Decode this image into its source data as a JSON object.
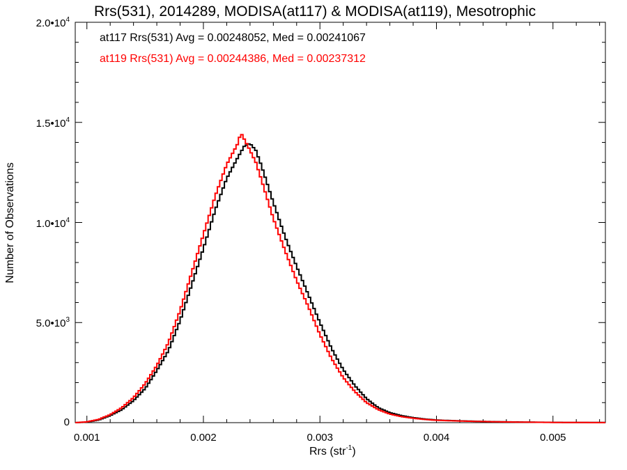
{
  "chart_data": {
    "type": "line",
    "title": "Rrs(531), 2014289, MODISA(at117) & MODISA(at119), Mesotrophic",
    "xlabel_main": "Rrs (str",
    "xlabel_sup": "-1",
    "xlabel_end": ")",
    "ylabel": "Number of Observations",
    "xlim": [
      0.0009,
      0.00545
    ],
    "ylim": [
      0,
      20000
    ],
    "x_ticks": [
      {
        "value": 0.001,
        "label": "0.001"
      },
      {
        "value": 0.002,
        "label": "0.002"
      },
      {
        "value": 0.003,
        "label": "0.003"
      },
      {
        "value": 0.004,
        "label": "0.004"
      },
      {
        "value": 0.005,
        "label": "0.005"
      }
    ],
    "y_ticks": [
      {
        "value": 0,
        "base": "0",
        "exp": ""
      },
      {
        "value": 5000,
        "base": "5.0•10",
        "exp": "3"
      },
      {
        "value": 10000,
        "base": "1.0•10",
        "exp": "4"
      },
      {
        "value": 15000,
        "base": "1.5•10",
        "exp": "4"
      },
      {
        "value": 20000,
        "base": "2.0•10",
        "exp": "4"
      }
    ],
    "annotations": [
      {
        "text": "at117 Rrs(531) Avg = 0.00248052, Med = 0.00241067",
        "color": "#000000"
      },
      {
        "text": "at119 Rrs(531) Avg = 0.00244386, Med = 0.00237312",
        "color": "#ff0000"
      }
    ],
    "series": [
      {
        "name": "at117",
        "color": "#000000",
        "x": [
          0.0009,
          0.001,
          0.0011,
          0.0012,
          0.0013,
          0.0014,
          0.0015,
          0.0016,
          0.0017,
          0.0018,
          0.0019,
          0.002,
          0.0021,
          0.0022,
          0.0023,
          0.00235,
          0.0024,
          0.00245,
          0.0025,
          0.0026,
          0.0027,
          0.0028,
          0.0029,
          0.003,
          0.0031,
          0.0032,
          0.0033,
          0.0034,
          0.0035,
          0.0036,
          0.0037,
          0.0038,
          0.0039,
          0.004,
          0.0042,
          0.0044,
          0.0046,
          0.0048,
          0.005,
          0.0052,
          0.00545
        ],
        "y": [
          0,
          30,
          130,
          350,
          650,
          1100,
          1700,
          2600,
          3600,
          5100,
          6900,
          8700,
          10600,
          12200,
          13300,
          13800,
          13950,
          13600,
          12800,
          11000,
          9300,
          7800,
          6400,
          5000,
          3700,
          2650,
          1850,
          1200,
          750,
          500,
          350,
          250,
          180,
          130,
          90,
          60,
          40,
          25,
          15,
          8,
          5
        ]
      },
      {
        "name": "at119",
        "color": "#ff0000",
        "x": [
          0.0009,
          0.001,
          0.0011,
          0.0012,
          0.0013,
          0.0014,
          0.0015,
          0.0016,
          0.0017,
          0.0018,
          0.0019,
          0.002,
          0.0021,
          0.0022,
          0.0023,
          0.00232,
          0.0024,
          0.00245,
          0.0025,
          0.0026,
          0.0027,
          0.0028,
          0.0029,
          0.003,
          0.0031,
          0.0032,
          0.0033,
          0.0034,
          0.0035,
          0.0036,
          0.0037,
          0.0038,
          0.0039,
          0.004,
          0.0042,
          0.0044,
          0.0046,
          0.0048,
          0.005,
          0.0052,
          0.00545
        ],
        "y": [
          0,
          40,
          160,
          400,
          750,
          1250,
          1950,
          2850,
          4000,
          5600,
          7500,
          9400,
          11300,
          12900,
          14000,
          14500,
          13600,
          13000,
          12100,
          10200,
          8600,
          7100,
          5800,
          4400,
          3200,
          2250,
          1550,
          1000,
          650,
          430,
          300,
          220,
          160,
          120,
          80,
          55,
          35,
          22,
          12,
          6,
          4
        ]
      }
    ]
  }
}
